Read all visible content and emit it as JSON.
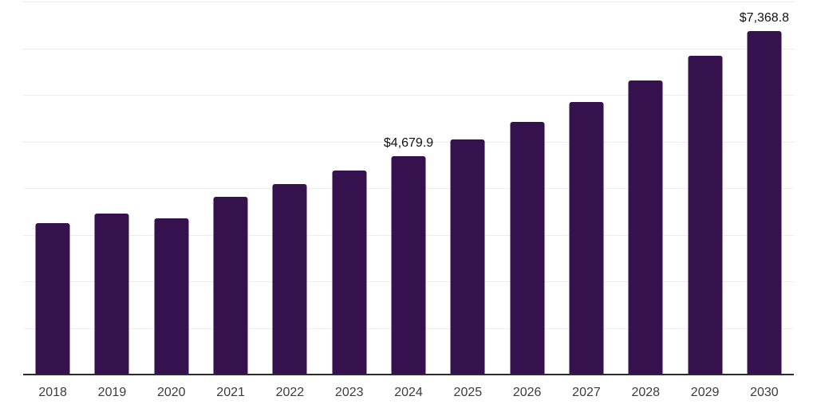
{
  "chart_data": {
    "type": "bar",
    "title": "",
    "xlabel": "",
    "ylabel": "",
    "categories": [
      "2018",
      "2019",
      "2020",
      "2021",
      "2022",
      "2023",
      "2024",
      "2025",
      "2026",
      "2027",
      "2028",
      "2029",
      "2030"
    ],
    "values": [
      3250,
      3455,
      3350,
      3810,
      4085,
      4375,
      4679.9,
      5040,
      5420,
      5845,
      6310,
      6840,
      7368.8
    ],
    "data_labels": {
      "2024": "$4,679.9",
      "2030": "$7,368.8"
    },
    "ylim": [
      0,
      8000
    ],
    "gridline_step": 1000,
    "grid": "horizontal",
    "legend": "none",
    "y_tick_labels_visible": false,
    "colors": {
      "bar": "#35124e",
      "axis": "#2b2b2b",
      "gridline": "#ededed",
      "tick_label": "#3c3c3c",
      "data_label": "#111111",
      "background": "#ffffff"
    }
  }
}
